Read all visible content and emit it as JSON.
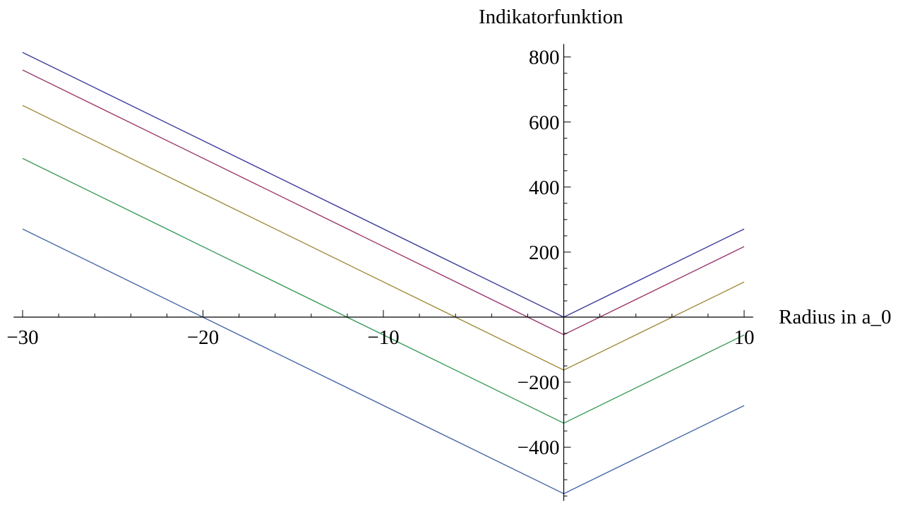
{
  "chart_data": {
    "type": "line",
    "title": "",
    "xlabel": "Radius in a_0",
    "ylabel": "Indikatorfunktion",
    "xlim": [
      -30.5,
      10.5
    ],
    "ylim": [
      -565,
      840
    ],
    "grid": false,
    "x_ticks": [
      -30,
      -20,
      -10,
      10
    ],
    "x_tick_labels": [
      "−30",
      "−20",
      "−10",
      "10"
    ],
    "y_ticks": [
      -400,
      -200,
      200,
      400,
      600,
      800
    ],
    "y_tick_labels": [
      "−400",
      "−200",
      "200",
      "400",
      "600",
      "800"
    ],
    "series": [
      {
        "color": "#3b3b9c",
        "x": [
          -30,
          0,
          10
        ],
        "y": [
          814,
          0,
          271
        ]
      },
      {
        "color": "#9c3b6e",
        "x": [
          -30,
          0,
          10
        ],
        "y": [
          760,
          -54,
          217
        ]
      },
      {
        "color": "#a08c3c",
        "x": [
          -30,
          0,
          10
        ],
        "y": [
          651,
          -163,
          108
        ]
      },
      {
        "color": "#3c9c5c",
        "x": [
          -30,
          0,
          10
        ],
        "y": [
          488,
          -326,
          -55
        ]
      },
      {
        "color": "#4668a8",
        "x": [
          -30,
          0,
          10
        ],
        "y": [
          271,
          -543,
          -272
        ]
      }
    ]
  }
}
